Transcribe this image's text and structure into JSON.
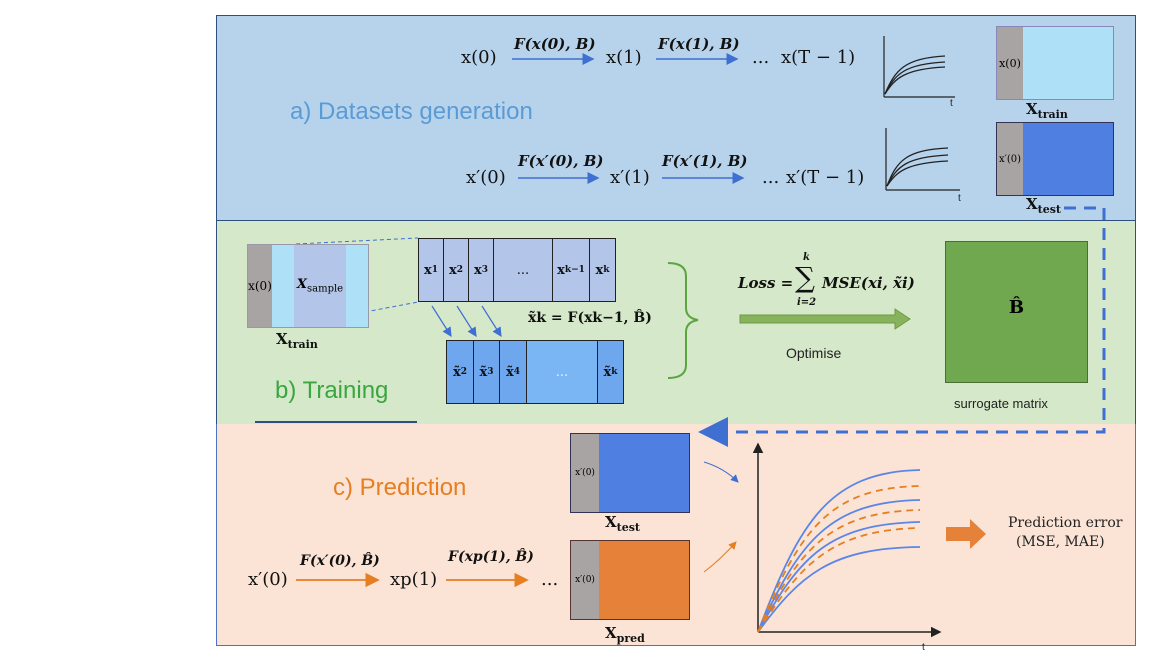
{
  "panels": {
    "a": {
      "title": "a) Datasets generation",
      "bg": "#b7d3ec",
      "title_color": "#5b9bd5"
    },
    "b": {
      "title": "b) Training",
      "bg": "#d5e8c9",
      "title_color": "#3aa640"
    },
    "c": {
      "title": "c) Prediction",
      "bg": "#fbe4d6",
      "title_color": "#e67e22"
    }
  },
  "datasets": {
    "row1": {
      "s0": "x(0)",
      "f0": "F(x(0), B)",
      "s1": "x(1)",
      "f1": "F(x(1), B)",
      "dots": "...",
      "sT": "x(T − 1)"
    },
    "row2": {
      "s0": "x′(0)",
      "f0": "F(x′(0), B)",
      "s1": "x′(1)",
      "f1": "F(x′(1), B)",
      "dots": "...",
      "sT": "x′(T − 1)"
    },
    "axis_t": "t",
    "train_block": {
      "label": "x(0)",
      "name": "X",
      "sub": "train",
      "color": "#aee0f8"
    },
    "test_block": {
      "label": "x′(0)",
      "name": "X",
      "sub": "test",
      "color": "#4f7fe0"
    }
  },
  "training": {
    "sample_block": {
      "x0": "x(0)",
      "sample": "X",
      "sample_sub": "sample",
      "name": "X",
      "sub": "train"
    },
    "seq_top": [
      "x1",
      "x2",
      "x3",
      "...",
      "xk−1",
      "xk"
    ],
    "seq_top_display": [
      {
        "b": "x",
        "s": "1"
      },
      {
        "b": "x",
        "s": "2"
      },
      {
        "b": "x",
        "s": "3"
      },
      {
        "b": "...",
        "s": ""
      },
      {
        "b": "x",
        "s": "k−1"
      },
      {
        "b": "x",
        "s": "k"
      }
    ],
    "seq_bottom_display": [
      {
        "b": "x̃",
        "s": "2"
      },
      {
        "b": "x̃",
        "s": "3"
      },
      {
        "b": "x̃",
        "s": "4"
      },
      {
        "b": "...",
        "s": ""
      },
      {
        "b": "x̃",
        "s": "k"
      }
    ],
    "recurrence": "x̃k = F(xk−1, B̂)",
    "loss_label": "Loss =",
    "loss_sum_top": "k",
    "loss_sum_bottom": "i=2",
    "loss_term": "MSE(xi, x̃i)",
    "optimise": "Optimise",
    "matrix_label": "B̂",
    "matrix_caption": "surrogate matrix",
    "matrix_color": "#70a850"
  },
  "prediction": {
    "test_block": {
      "label": "x′(0)",
      "name": "X",
      "sub": "test",
      "color": "#4f7fe0"
    },
    "pred_block": {
      "label": "x′(0)",
      "name": "X",
      "sub": "pred",
      "color": "#e6813a"
    },
    "s0": "x′(0)",
    "f0": "F(x′(0), B̂)",
    "s1": "xp(1)",
    "f1": "F(xp(1), B̂)",
    "dots": "...",
    "axis_t": "t",
    "error_line1": "Prediction error",
    "error_line2": "(MSE, MAE)",
    "arrow_color": "#e67e22"
  }
}
